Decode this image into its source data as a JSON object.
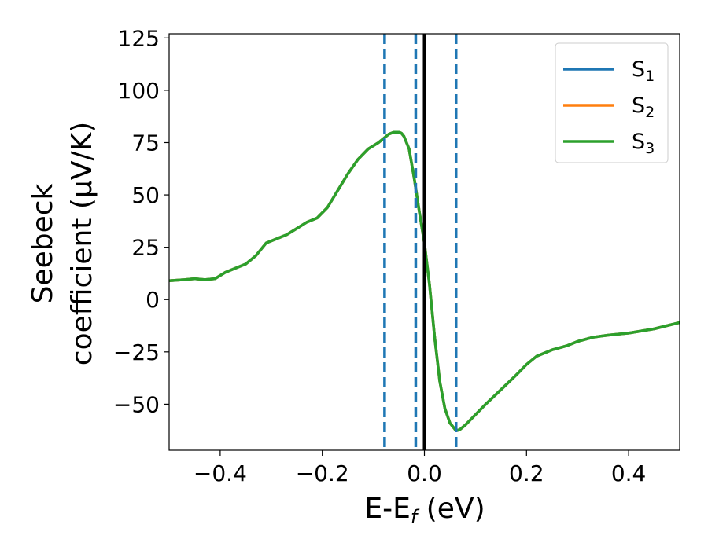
{
  "chart_data": {
    "type": "line",
    "title": "",
    "xlabel": {
      "main": "E-E",
      "sub": "f",
      "tail": " (eV)"
    },
    "ylabel": {
      "line1": "Seebeck",
      "line2": "coefficient  (μV/K)"
    },
    "xlim": [
      -0.5,
      0.5
    ],
    "ylim": [
      -72,
      127
    ],
    "xticks": [
      -0.4,
      -0.2,
      0.0,
      0.2,
      0.4
    ],
    "xtick_labels": [
      "−0.4",
      "−0.2",
      "0.0",
      "0.2",
      "0.4"
    ],
    "yticks": [
      -50,
      -25,
      0,
      25,
      50,
      75,
      100,
      125
    ],
    "ytick_labels": [
      "−50",
      "−25",
      "0",
      "25",
      "50",
      "75",
      "100",
      "125"
    ],
    "grid": false,
    "legend_position": "top-right",
    "x": [
      -0.5,
      -0.47,
      -0.45,
      -0.43,
      -0.41,
      -0.39,
      -0.37,
      -0.35,
      -0.33,
      -0.31,
      -0.29,
      -0.27,
      -0.25,
      -0.23,
      -0.21,
      -0.19,
      -0.17,
      -0.15,
      -0.13,
      -0.11,
      -0.09,
      -0.08,
      -0.07,
      -0.06,
      -0.05,
      -0.045,
      -0.04,
      -0.03,
      -0.02,
      -0.01,
      0.0,
      0.01,
      0.02,
      0.03,
      0.04,
      0.05,
      0.06,
      0.065,
      0.07,
      0.08,
      0.1,
      0.12,
      0.15,
      0.18,
      0.2,
      0.22,
      0.25,
      0.28,
      0.3,
      0.33,
      0.36,
      0.4,
      0.45,
      0.5
    ],
    "series": [
      {
        "name": "S",
        "sub": "1",
        "color": "#1f77b4",
        "values": [
          9,
          9.5,
          10,
          9.5,
          10,
          13,
          15,
          17,
          21,
          27,
          29,
          31,
          34,
          37,
          39,
          44,
          52,
          60,
          67,
          72,
          75,
          77,
          79,
          80,
          80,
          79.5,
          78,
          72,
          58,
          42,
          27,
          7,
          -18,
          -39,
          -52,
          -59,
          -62,
          -62.5,
          -62,
          -60,
          -55,
          -50,
          -43,
          -36,
          -31,
          -27,
          -24,
          -22,
          -20,
          -18,
          -17,
          -16,
          -14,
          -11
        ]
      },
      {
        "name": "S",
        "sub": "2",
        "color": "#ff7f0e",
        "values": [
          9,
          9.5,
          10,
          9.5,
          10,
          13,
          15,
          17,
          21,
          27,
          29,
          31,
          34,
          37,
          39,
          44,
          52,
          60,
          67,
          72,
          75,
          77,
          79,
          80,
          80,
          79.5,
          78,
          72,
          58,
          42,
          27,
          7,
          -18,
          -39,
          -52,
          -59,
          -62,
          -62.5,
          -62,
          -60,
          -55,
          -50,
          -43,
          -36,
          -31,
          -27,
          -24,
          -22,
          -20,
          -18,
          -17,
          -16,
          -14,
          -11
        ]
      },
      {
        "name": "S",
        "sub": "3",
        "color": "#2ca02c",
        "values": [
          9,
          9.5,
          10,
          9.5,
          10,
          13,
          15,
          17,
          21,
          27,
          29,
          31,
          34,
          37,
          39,
          44,
          52,
          60,
          67,
          72,
          75,
          77,
          79,
          80,
          80,
          79.5,
          78,
          72,
          58,
          42,
          27,
          7,
          -18,
          -39,
          -52,
          -59,
          -62,
          -62.5,
          -62,
          -60,
          -55,
          -50,
          -43,
          -36,
          -31,
          -27,
          -24,
          -22,
          -20,
          -18,
          -17,
          -16,
          -14,
          -11
        ]
      }
    ],
    "vlines": [
      {
        "x": -0.078,
        "style": "dashed",
        "color": "#1f77b4"
      },
      {
        "x": -0.017,
        "style": "dashed",
        "color": "#1f77b4"
      },
      {
        "x": 0.0,
        "style": "solid",
        "color": "#000000"
      },
      {
        "x": 0.062,
        "style": "dashed",
        "color": "#1f77b4"
      }
    ]
  }
}
